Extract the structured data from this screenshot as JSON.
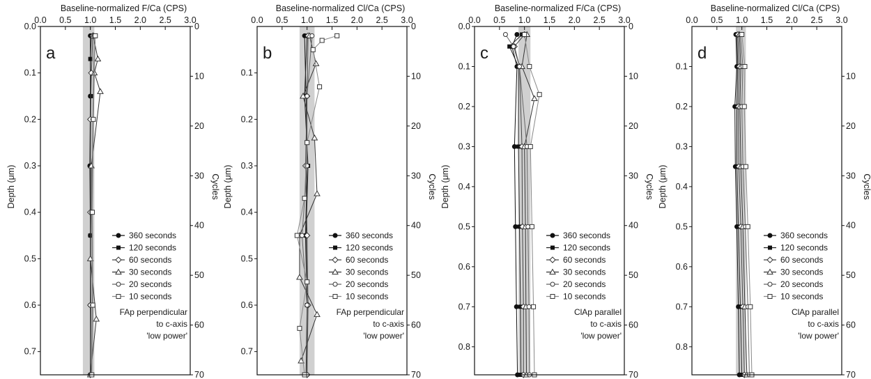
{
  "figure": {
    "x_axis_values": [
      0.0,
      0.5,
      1.0,
      1.5,
      2.0,
      2.5,
      3.0
    ],
    "cycles_ticks": [
      0,
      10,
      20,
      30,
      40,
      50,
      60,
      70
    ]
  },
  "legend_labels": [
    "360 seconds",
    "120 seconds",
    "60 seconds",
    "30 seconds",
    "20 seconds",
    "10 seconds"
  ],
  "chart_data": [
    {
      "type": "line",
      "panel": "a",
      "title": "Baseline-normalized F/Ca (CPS)",
      "xlabel": "Baseline-normalized F/Ca (CPS)",
      "ylabel": "Depth (μm)",
      "y2label": "Cycles",
      "xlim": [
        0,
        3
      ],
      "ylim": [
        0,
        0.75
      ],
      "xticks": [
        "0.0",
        "0.5",
        "1.0",
        "1.5",
        "2.0",
        "2.5",
        "3.0"
      ],
      "yticks": [
        "0.0",
        "0.1",
        "0.2",
        "0.3",
        "0.4",
        "0.5",
        "0.6",
        "0.7"
      ],
      "y2ticks": [
        "0",
        "10",
        "20",
        "30",
        "40",
        "50",
        "60",
        "70"
      ],
      "y2lim": [
        0,
        70
      ],
      "baseline_band": [
        0.85,
        1.08
      ],
      "note": [
        "FAp perpendicular",
        "to c-axis",
        "'low power'"
      ],
      "legend_position": "right",
      "series": [
        {
          "name": "360 seconds",
          "marker": "filled-circle",
          "depth": [
            0.02,
            0.15,
            0.3,
            0.45,
            0.6,
            0.75
          ],
          "values": [
            1.0,
            1.0,
            0.99,
            1.0,
            1.0,
            1.0
          ]
        },
        {
          "name": "120 seconds",
          "marker": "filled-square",
          "depth": [
            0.02,
            0.07,
            0.15,
            0.3,
            0.45,
            0.6,
            0.75
          ],
          "values": [
            1.02,
            1.0,
            1.01,
            1.0,
            1.0,
            1.01,
            1.0
          ]
        },
        {
          "name": "60 seconds",
          "marker": "diamond",
          "depth": [
            0.02,
            0.1,
            0.2,
            0.4,
            0.6,
            0.75
          ],
          "values": [
            1.05,
            1.02,
            1.0,
            1.0,
            1.0,
            1.0
          ]
        },
        {
          "name": "30 seconds",
          "marker": "triangle",
          "depth": [
            0.02,
            0.07,
            0.1,
            0.14,
            0.3,
            0.5,
            0.63,
            0.75
          ],
          "values": [
            1.06,
            1.15,
            1.08,
            1.2,
            1.02,
            1.0,
            1.12,
            1.0
          ]
        },
        {
          "name": "20 seconds",
          "marker": "open-circle",
          "depth": [
            0.02,
            0.2,
            0.4,
            0.6,
            0.75
          ],
          "values": [
            1.08,
            1.05,
            1.03,
            1.04,
            1.02
          ]
        },
        {
          "name": "10 seconds",
          "marker": "open-square",
          "depth": [
            0.02,
            0.2,
            0.4,
            0.6,
            0.75
          ],
          "values": [
            1.1,
            1.06,
            1.04,
            1.05,
            1.03
          ]
        }
      ]
    },
    {
      "type": "line",
      "panel": "b",
      "title": "Baseline-normalized Cl/Ca (CPS)",
      "xlabel": "Baseline-normalized Cl/Ca (CPS)",
      "ylabel": "Depth (μm)",
      "y2label": "Cycles",
      "xlim": [
        0,
        3
      ],
      "ylim": [
        0,
        0.75
      ],
      "xticks": [
        "0.0",
        "0.5",
        "1.0",
        "1.5",
        "2.0",
        "2.5",
        "3.0"
      ],
      "yticks": [
        "0.1",
        "0.2",
        "0.3",
        "0.4",
        "0.5",
        "0.6",
        "0.7"
      ],
      "y2ticks": [
        "0",
        "10",
        "20",
        "30",
        "40",
        "50",
        "60",
        "70"
      ],
      "y2lim": [
        0,
        70
      ],
      "baseline_band": [
        0.85,
        1.15
      ],
      "note": [
        "FAp perpendicular",
        "to c-axis",
        "'low power'"
      ],
      "legend_position": "right",
      "series": [
        {
          "name": "360 seconds",
          "marker": "filled-circle",
          "depth": [
            0.02,
            0.15,
            0.3,
            0.45,
            0.6,
            0.75
          ],
          "values": [
            0.95,
            0.98,
            1.0,
            0.97,
            1.0,
            1.0
          ]
        },
        {
          "name": "120 seconds",
          "marker": "filled-square",
          "depth": [
            0.02,
            0.15,
            0.3,
            0.45,
            0.6,
            0.75
          ],
          "values": [
            1.0,
            0.95,
            1.02,
            0.98,
            1.0,
            0.98
          ]
        },
        {
          "name": "60 seconds",
          "marker": "diamond",
          "depth": [
            0.02,
            0.15,
            0.3,
            0.45,
            0.6,
            0.75
          ],
          "values": [
            1.02,
            1.0,
            0.97,
            1.0,
            1.02,
            1.0
          ]
        },
        {
          "name": "30 seconds",
          "marker": "triangle",
          "depth": [
            0.02,
            0.08,
            0.15,
            0.24,
            0.36,
            0.45,
            0.54,
            0.62,
            0.72
          ],
          "values": [
            1.05,
            1.18,
            0.92,
            1.15,
            1.2,
            0.85,
            0.85,
            1.2,
            0.88
          ]
        },
        {
          "name": "20 seconds",
          "marker": "open-circle",
          "depth": [
            0.02,
            0.15,
            0.3,
            0.45,
            0.6,
            0.75
          ],
          "values": [
            1.1,
            1.0,
            1.0,
            0.9,
            1.0,
            1.0
          ]
        },
        {
          "name": "10 seconds",
          "marker": "open-square",
          "depth": [
            0.02,
            0.03,
            0.05,
            0.13,
            0.25,
            0.37,
            0.45,
            0.55,
            0.65,
            0.75
          ],
          "values": [
            1.6,
            1.3,
            1.12,
            1.25,
            1.0,
            0.95,
            0.8,
            1.0,
            0.85,
            0.95
          ]
        }
      ]
    },
    {
      "type": "line",
      "panel": "c",
      "title": "Baseline-normalized F/Ca (CPS)",
      "xlabel": "Baseline-normalized F/Ca (CPS)",
      "ylabel": "Depth (μm)",
      "y2label": "Cycles",
      "xlim": [
        0,
        3
      ],
      "ylim": [
        0,
        0.87
      ],
      "xticks": [
        "0.0",
        "0.5",
        "1.0",
        "1.5",
        "2.0",
        "2.5",
        "3.0"
      ],
      "yticks": [
        "0.0",
        "0.1",
        "0.2",
        "0.3",
        "0.4",
        "0.5",
        "0.6",
        "0.7",
        "0.8"
      ],
      "y2ticks": [
        "0",
        "10",
        "20",
        "30",
        "40",
        "50",
        "60",
        "70"
      ],
      "y2lim": [
        0,
        70
      ],
      "baseline_band": [
        0.88,
        1.12
      ],
      "note": [
        "ClAp parallel",
        "to c-axis",
        "'low power'"
      ],
      "legend_position": "right",
      "series": [
        {
          "name": "360 seconds",
          "marker": "filled-circle",
          "depth": [
            0.02,
            0.05,
            0.1,
            0.3,
            0.5,
            0.7,
            0.87
          ],
          "values": [
            0.85,
            0.75,
            0.85,
            0.8,
            0.82,
            0.84,
            0.86
          ]
        },
        {
          "name": "120 seconds",
          "marker": "filled-square",
          "depth": [
            0.02,
            0.05,
            0.1,
            0.3,
            0.5,
            0.7,
            0.87
          ],
          "values": [
            0.95,
            0.7,
            0.88,
            0.88,
            0.9,
            0.92,
            0.93
          ]
        },
        {
          "name": "60 seconds",
          "marker": "diamond",
          "depth": [
            0.02,
            0.05,
            0.1,
            0.3,
            0.5,
            0.7,
            0.87
          ],
          "values": [
            1.0,
            0.8,
            0.9,
            0.95,
            0.96,
            0.98,
            0.98
          ]
        },
        {
          "name": "30 seconds",
          "marker": "triangle",
          "depth": [
            0.02,
            0.1,
            0.18,
            0.3,
            0.5,
            0.7,
            0.87
          ],
          "values": [
            1.05,
            0.95,
            1.2,
            1.0,
            1.02,
            1.03,
            1.04
          ]
        },
        {
          "name": "20 seconds",
          "marker": "open-circle",
          "depth": [
            0.02,
            0.05,
            0.1,
            0.3,
            0.5,
            0.7,
            0.87
          ],
          "values": [
            0.62,
            0.78,
            0.9,
            1.05,
            1.07,
            1.09,
            1.1
          ]
        },
        {
          "name": "10 seconds",
          "marker": "open-square",
          "depth": [
            0.02,
            0.1,
            0.17,
            0.3,
            0.5,
            0.7,
            0.87
          ],
          "values": [
            1.0,
            1.1,
            1.3,
            1.12,
            1.15,
            1.18,
            1.2
          ]
        }
      ]
    },
    {
      "type": "line",
      "panel": "d",
      "title": "Baseline-normalized Cl/Ca (CPS)",
      "xlabel": "Baseline-normalized Cl/Ca (CPS)",
      "ylabel": "Depth (μm)",
      "y2label": "Cycles",
      "xlim": [
        0,
        3
      ],
      "ylim": [
        0,
        0.87
      ],
      "xticks": [
        "0.0",
        "0.5",
        "1.0",
        "1.5",
        "2.0",
        "2.5",
        "3.0"
      ],
      "yticks": [
        "0.1",
        "0.2",
        "0.3",
        "0.4",
        "0.5",
        "0.6",
        "0.7",
        "0.8"
      ],
      "y2ticks": [
        "10",
        "20",
        "30",
        "40",
        "50",
        "60",
        "70"
      ],
      "y2lim": [
        0,
        70
      ],
      "baseline_band": [
        0.88,
        1.08
      ],
      "note": [
        "ClAp parallel",
        "to c-axis",
        "'low power'"
      ],
      "legend_position": "right",
      "series": [
        {
          "name": "360 seconds",
          "marker": "filled-circle",
          "depth": [
            0.02,
            0.1,
            0.2,
            0.35,
            0.5,
            0.7,
            0.87
          ],
          "values": [
            0.88,
            0.9,
            0.86,
            0.87,
            0.9,
            0.93,
            0.95
          ]
        },
        {
          "name": "120 seconds",
          "marker": "filled-square",
          "depth": [
            0.02,
            0.1,
            0.2,
            0.35,
            0.5,
            0.7,
            0.87
          ],
          "values": [
            0.9,
            0.92,
            0.9,
            0.9,
            0.93,
            0.97,
            1.0
          ]
        },
        {
          "name": "60 seconds",
          "marker": "diamond",
          "depth": [
            0.02,
            0.1,
            0.2,
            0.35,
            0.5,
            0.7,
            0.87
          ],
          "values": [
            0.92,
            0.95,
            0.93,
            0.94,
            0.98,
            1.02,
            1.05
          ]
        },
        {
          "name": "30 seconds",
          "marker": "triangle",
          "depth": [
            0.02,
            0.1,
            0.2,
            0.35,
            0.5,
            0.7,
            0.87
          ],
          "values": [
            0.95,
            0.98,
            0.96,
            0.98,
            1.02,
            1.06,
            1.1
          ]
        },
        {
          "name": "20 seconds",
          "marker": "open-circle",
          "depth": [
            0.02,
            0.1,
            0.2,
            0.35,
            0.5,
            0.7,
            0.87
          ],
          "values": [
            0.97,
            1.02,
            1.0,
            1.02,
            1.07,
            1.12,
            1.15
          ]
        },
        {
          "name": "10 seconds",
          "marker": "open-square",
          "depth": [
            0.02,
            0.1,
            0.2,
            0.35,
            0.5,
            0.7,
            0.87
          ],
          "values": [
            1.0,
            1.06,
            1.05,
            1.08,
            1.12,
            1.17,
            1.2
          ]
        }
      ]
    }
  ]
}
